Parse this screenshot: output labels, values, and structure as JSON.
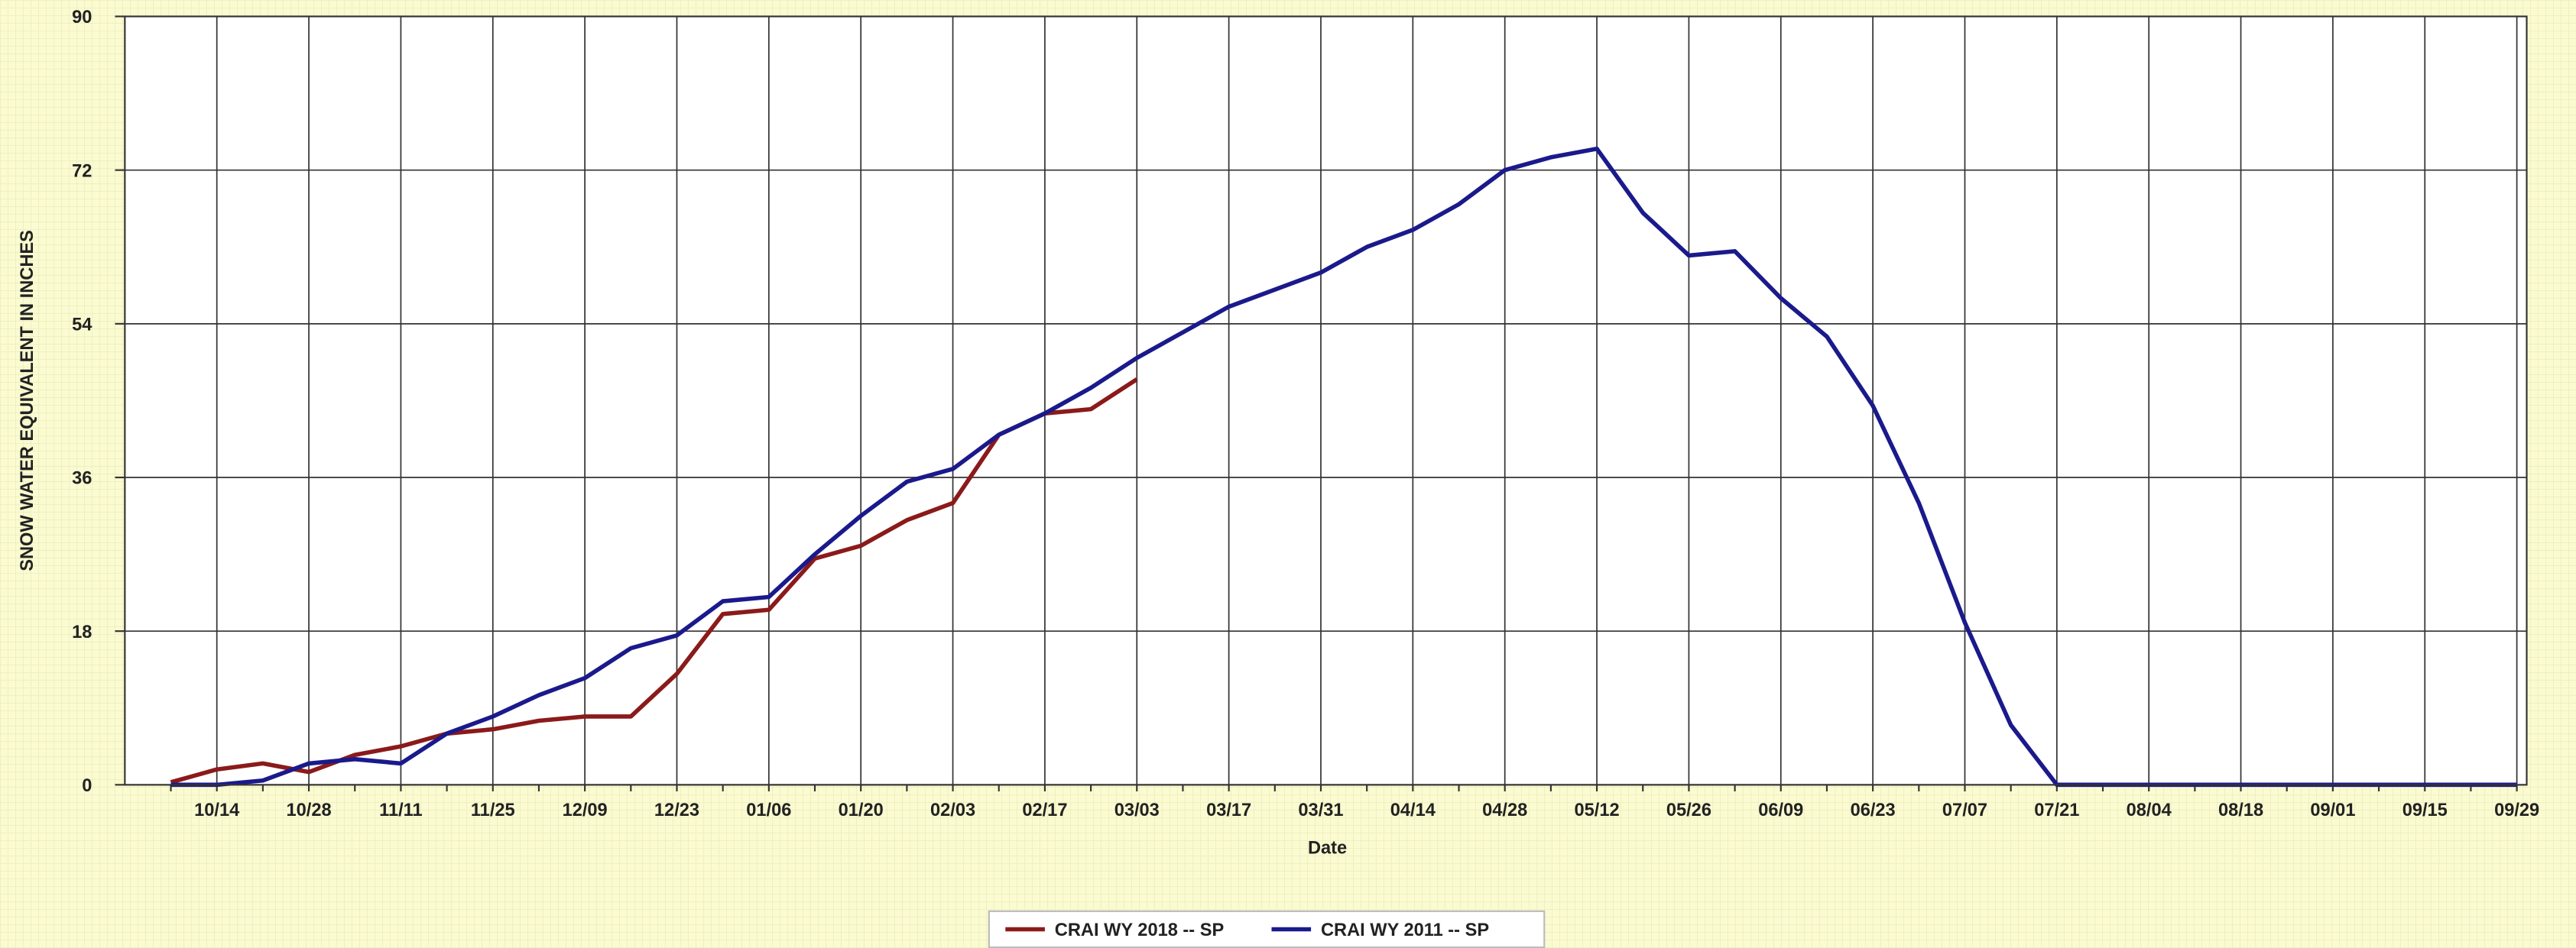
{
  "chart_data": {
    "type": "line",
    "y_label": "SNOW WATER EQUIVALENT IN INCHES",
    "x_label": "Date",
    "x": [
      null,
      "10/14",
      null,
      "10/28",
      null,
      "11/11",
      null,
      "11/25",
      null,
      "12/09",
      null,
      "12/23",
      null,
      "01/06",
      null,
      "01/20",
      null,
      "02/03",
      null,
      "02/17",
      null,
      "03/03",
      null,
      "03/17",
      null,
      "03/31",
      null,
      "04/14",
      null,
      "04/28",
      null,
      "05/12",
      null,
      "05/26",
      null,
      "06/09",
      null,
      "06/23",
      null,
      "07/07",
      null,
      "07/21",
      null,
      "08/04",
      null,
      "08/18",
      null,
      "09/01",
      null,
      "09/15",
      null,
      "09/29"
    ],
    "series": [
      {
        "name": "CRAI WY 2018 -- SP",
        "color": "#8b1a1a",
        "values": [
          0.3,
          1.8,
          2.5,
          1.5,
          3.5,
          4.5,
          6,
          6.5,
          7.5,
          8,
          8,
          13,
          20,
          20.5,
          26.5,
          28,
          31,
          33,
          41,
          43.5,
          44,
          47.5,
          null,
          null,
          null,
          null,
          null,
          null,
          null,
          null,
          null,
          null,
          null,
          null,
          null,
          null,
          null,
          null,
          null,
          null,
          null,
          null,
          null,
          null,
          null,
          null,
          null,
          null,
          null,
          null,
          null,
          null
        ]
      },
      {
        "name": "CRAI WY 2011 -- SP",
        "color": "#1a1a8c",
        "values": [
          0,
          0,
          0.5,
          2.5,
          3,
          2.5,
          6,
          8,
          10.5,
          12.5,
          16,
          17.5,
          21.5,
          22,
          27,
          31.5,
          35.5,
          37,
          41,
          43.5,
          46.5,
          50,
          53,
          56,
          58,
          60,
          63,
          65,
          68,
          72,
          73.5,
          74.5,
          67,
          62,
          62.5,
          57,
          52.5,
          44.4,
          33,
          19,
          7,
          0,
          0,
          0,
          0,
          0,
          0,
          0,
          0,
          0,
          0,
          0
        ]
      }
    ],
    "ylim": [
      0,
      90
    ],
    "yticks": [
      0,
      18,
      36,
      54,
      72,
      90
    ],
    "grid": true,
    "legend": "bottom"
  }
}
